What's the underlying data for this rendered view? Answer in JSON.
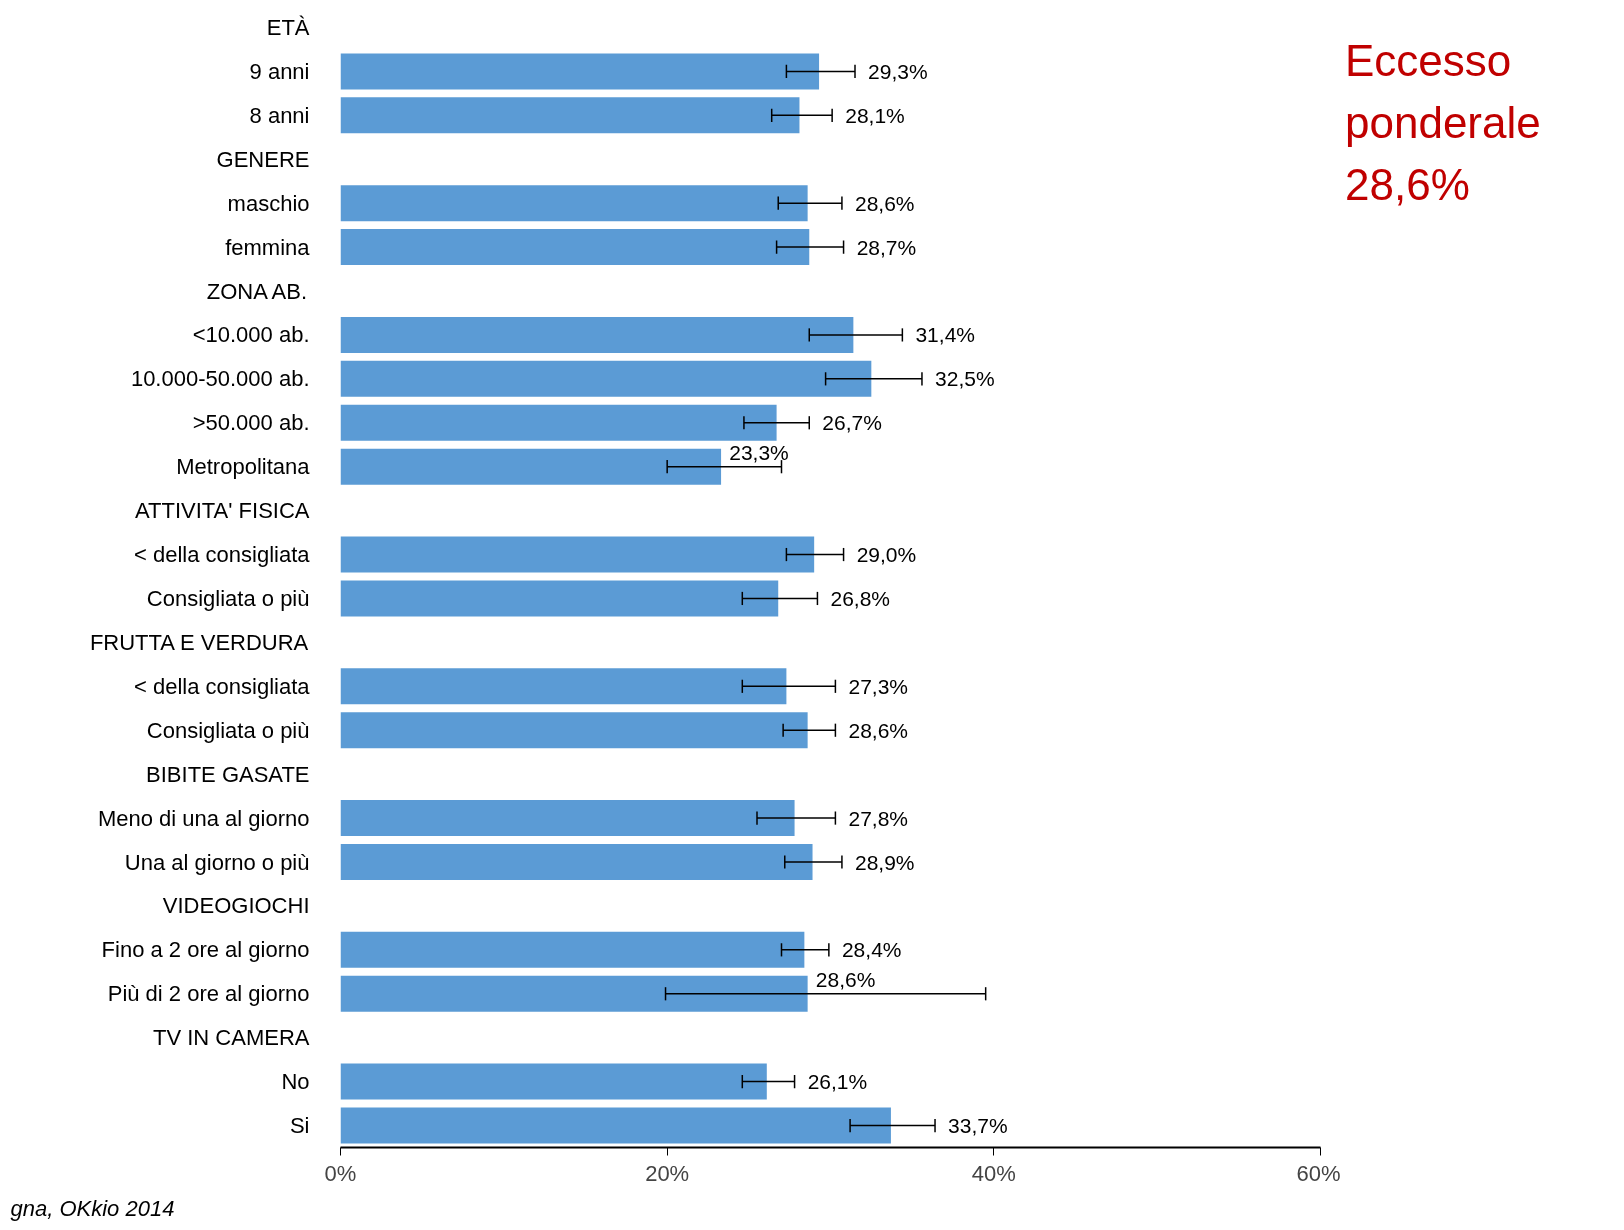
{
  "chart_data": {
    "type": "bar",
    "orientation": "horizontal",
    "categories": [
      "ETÀ",
      "9 anni",
      "8 anni",
      "GENERE",
      "maschio",
      "femmina",
      "ZONA AB.",
      "<10.000 ab.",
      "10.000-50.000 ab.",
      ">50.000 ab.",
      "Metropolitana",
      "ATTIVITA' FISICA",
      "< della consigliata",
      "Consigliata o più",
      "FRUTTA E VERDURA",
      "< della consigliata",
      "Consigliata o più",
      "BIBITE GASATE",
      "Meno di una al giorno",
      "Una al giorno o più",
      "VIDEOGIOCHI",
      "Fino a 2 ore al giorno",
      "Più di 2 ore al giorno",
      "TV IN CAMERA",
      "No",
      "Si"
    ],
    "values": [
      null,
      29.3,
      28.1,
      null,
      28.6,
      28.7,
      null,
      31.4,
      32.5,
      26.7,
      23.3,
      null,
      29.0,
      26.8,
      null,
      27.3,
      28.6,
      null,
      27.8,
      28.9,
      null,
      28.4,
      28.6,
      null,
      26.1,
      33.7
    ],
    "errors": [
      null,
      [
        27.3,
        31.5
      ],
      [
        26.4,
        30.1
      ],
      null,
      [
        26.8,
        30.7
      ],
      [
        26.7,
        30.8
      ],
      null,
      [
        28.7,
        34.4
      ],
      [
        29.7,
        35.6
      ],
      [
        24.7,
        28.7
      ],
      [
        20.0,
        27.0
      ],
      null,
      [
        27.3,
        30.8
      ],
      [
        24.6,
        29.2
      ],
      null,
      [
        24.6,
        30.3
      ],
      [
        27.1,
        30.3
      ],
      null,
      [
        25.5,
        30.3
      ],
      [
        27.2,
        30.7
      ],
      null,
      [
        27.0,
        29.9
      ],
      [
        19.9,
        39.5
      ],
      null,
      [
        24.6,
        27.8
      ],
      [
        31.2,
        36.4
      ]
    ],
    "value_labels": [
      null,
      "29,3%",
      "28,1%",
      null,
      "28,6%",
      "28,7%",
      null,
      "31,4%",
      "32,5%",
      "26,7%",
      "23,3%",
      null,
      "29,0%",
      "26,8%",
      null,
      "27,3%",
      "28,6%",
      null,
      "27,8%",
      "28,9%",
      null,
      "28,4%",
      "28,6%",
      null,
      "26,1%",
      "33,7%"
    ],
    "color": "#5b9bd5",
    "xlim": [
      0,
      60
    ],
    "xticks": [
      {
        "value": 0,
        "label": "0%"
      },
      {
        "value": 20,
        "label": "20%"
      },
      {
        "value": 40,
        "label": "40%"
      },
      {
        "value": 60,
        "label": "60%"
      }
    ],
    "grid": false,
    "legend": false,
    "annotations": [
      "Eccesso ponderale 28,6%",
      "gna, OKkio 2014"
    ]
  }
}
